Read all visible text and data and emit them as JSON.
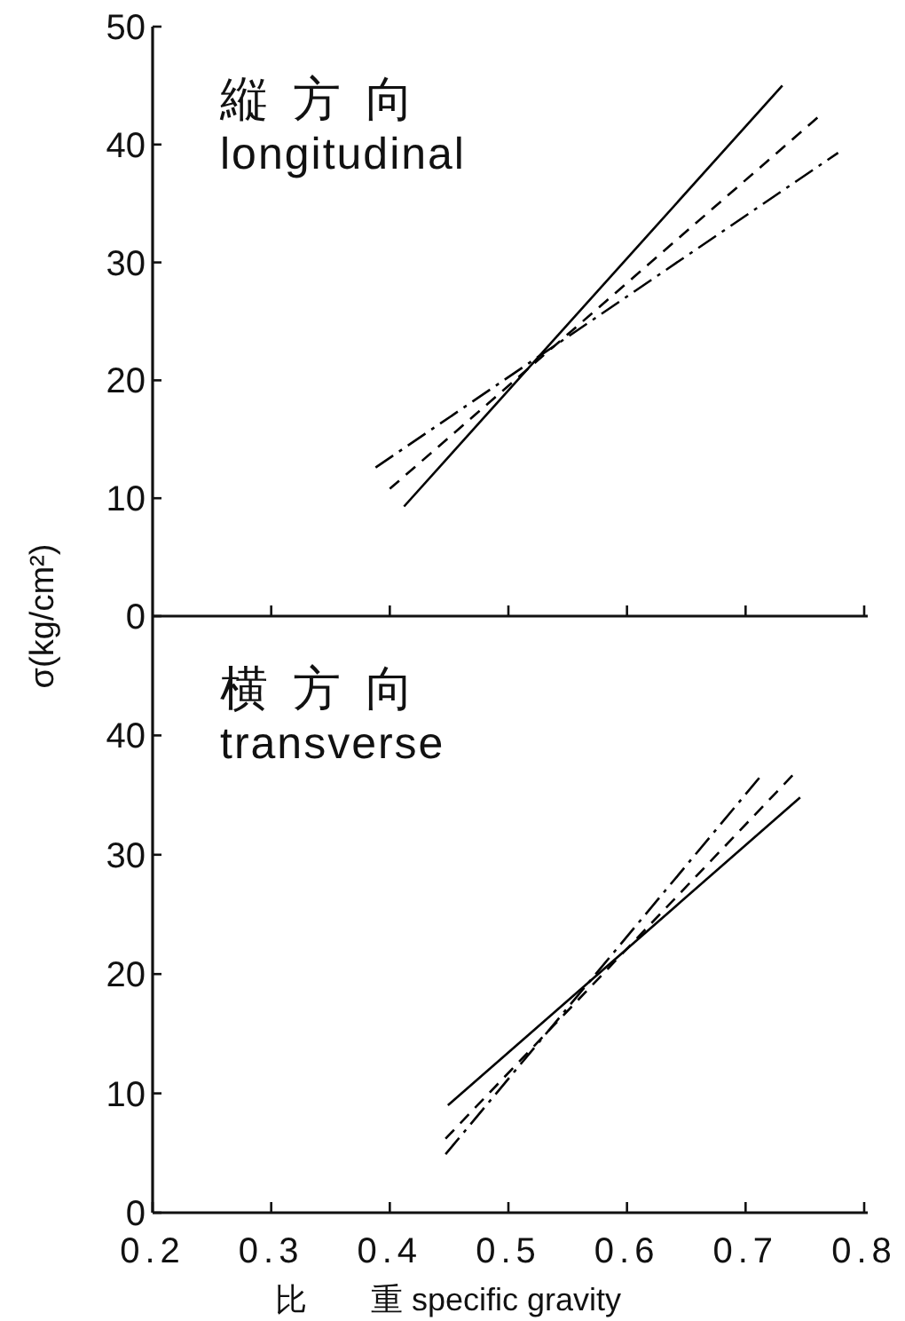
{
  "chart_data": [
    {
      "type": "line",
      "title": "縦方向",
      "subtitle": "longitudinal",
      "ylabel": "σ(kg/cm²)",
      "xlim": [
        0.2,
        0.8
      ],
      "ylim": [
        0,
        50
      ],
      "xticks": [
        0.3,
        0.4,
        0.5,
        0.6,
        0.7,
        0.8
      ],
      "yticks": [
        0,
        10,
        20,
        30,
        40,
        50
      ],
      "tick_labels": "y",
      "series": [
        {
          "color": "#000000",
          "line_style": "solid",
          "x": [
            0.412,
            0.731
          ],
          "values": [
            9.3,
            45.0
          ]
        },
        {
          "color": "#000000",
          "line_style": "dashed",
          "x": [
            0.4,
            0.762
          ],
          "values": [
            10.8,
            42.4
          ]
        },
        {
          "color": "#000000",
          "line_style": "dashdot",
          "x": [
            0.388,
            0.778
          ],
          "values": [
            12.6,
            39.3
          ]
        }
      ]
    },
    {
      "type": "line",
      "title": "横方向",
      "subtitle": "transverse",
      "xlabel": "比　　重 specific gravity",
      "xlim": [
        0.2,
        0.8
      ],
      "ylim": [
        0,
        50
      ],
      "xticks": [
        0.2,
        0.3,
        0.4,
        0.5,
        0.6,
        0.7,
        0.8
      ],
      "yticks": [
        0,
        10,
        20,
        30,
        40
      ],
      "series": [
        {
          "color": "#000000",
          "line_style": "solid",
          "x": [
            0.449,
            0.746
          ],
          "values": [
            9.0,
            34.8
          ]
        },
        {
          "color": "#000000",
          "line_style": "dashed",
          "x": [
            0.447,
            0.741
          ],
          "values": [
            6.2,
            36.8
          ]
        },
        {
          "color": "#000000",
          "line_style": "dashdot",
          "x": [
            0.447,
            0.712
          ],
          "values": [
            4.9,
            36.5
          ]
        }
      ]
    }
  ]
}
